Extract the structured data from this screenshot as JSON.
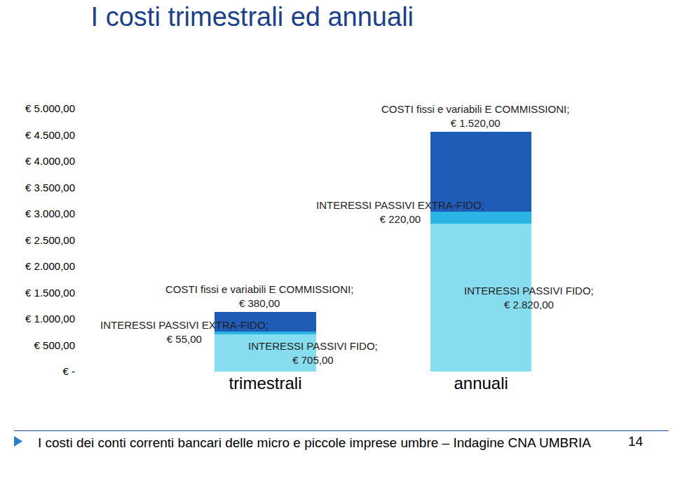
{
  "chart_data": {
    "type": "bar",
    "title": "I costi trimestrali ed annuali",
    "stacked": true,
    "data_labels": true,
    "grid": false,
    "categories": [
      "trimestrali",
      "annuali"
    ],
    "series": [
      {
        "name": "INTERESSI PASSIVI FIDO",
        "color": "#86DDF0",
        "values": [
          705,
          2820
        ],
        "value_labels": [
          "INTERESSI PASSIVI FIDO; € 705,00",
          "INTERESSI PASSIVI FIDO; € 2.820,00"
        ]
      },
      {
        "name": "INTERESSI PASSIVI EXTRA-FIDO",
        "color": "#2BB5E5",
        "values": [
          55,
          220
        ],
        "value_labels": [
          "INTERESSI PASSIVI EXTRA-FIDO; € 55,00",
          "INTERESSI PASSIVI EXTRA-FIDO; € 220,00"
        ]
      },
      {
        "name": "COSTI fissi e variabili E COMMISSIONI",
        "color": "#1E5CB8",
        "values": [
          380,
          1520
        ],
        "value_labels": [
          "COSTI fissi e variabili E COMMISSIONI; € 380,00",
          "COSTI fissi e variabili E COMMISSIONI; € 1.520,00"
        ]
      }
    ],
    "ylim": [
      0,
      5000
    ],
    "yticks": [
      {
        "value": 0,
        "label": "€ -"
      },
      {
        "value": 500,
        "label": "€ 500,00"
      },
      {
        "value": 1000,
        "label": "€ 1.000,00"
      },
      {
        "value": 1500,
        "label": "€ 1.500,00"
      },
      {
        "value": 2000,
        "label": "€ 2.000,00"
      },
      {
        "value": 2500,
        "label": "€ 2.500,00"
      },
      {
        "value": 3000,
        "label": "€ 3.000,00"
      },
      {
        "value": 3500,
        "label": "€ 3.500,00"
      },
      {
        "value": 4000,
        "label": "€ 4.000,00"
      },
      {
        "value": 4500,
        "label": "€ 4.500,00"
      },
      {
        "value": 5000,
        "label": "€ 5.000,00"
      }
    ],
    "annotations": [
      "I costi dei conti correnti bancari delle micro e piccole imprese umbre – Indagine CNA UMBRIA",
      "14"
    ]
  }
}
